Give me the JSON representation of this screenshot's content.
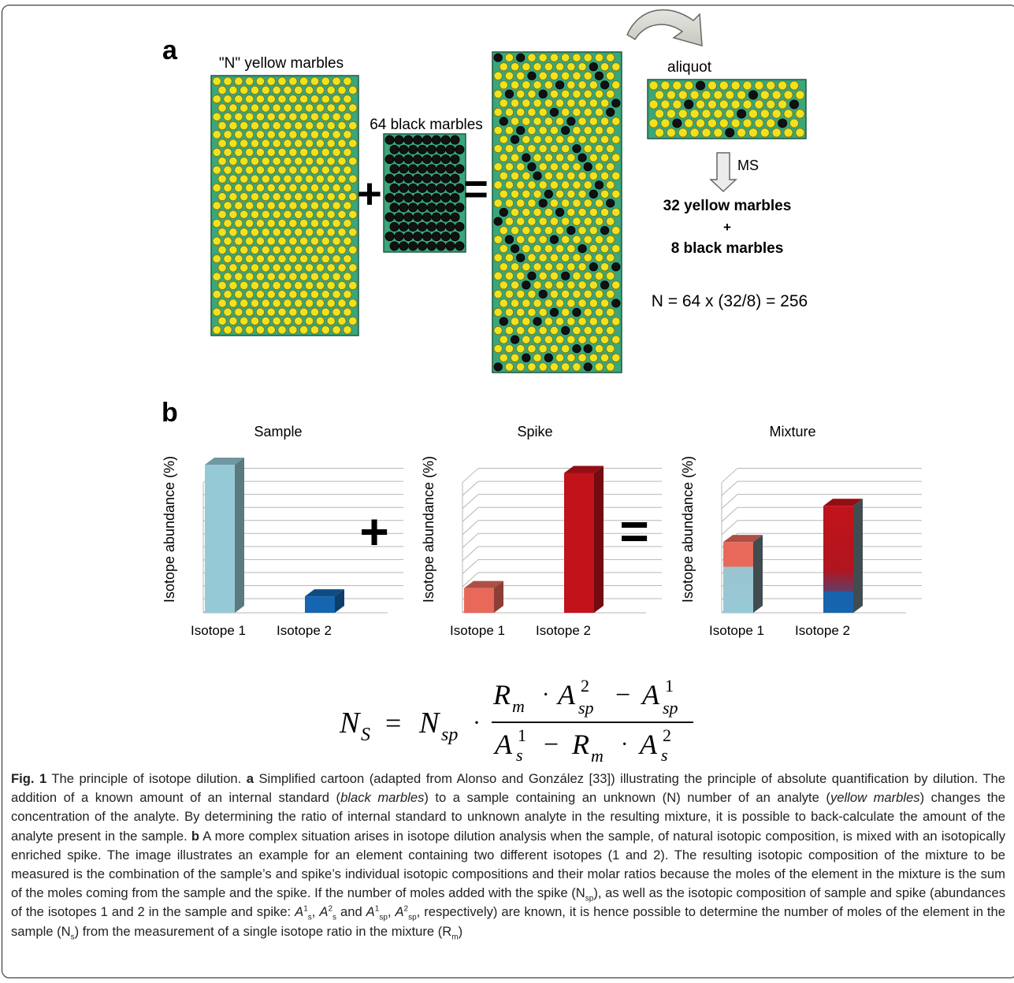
{
  "panel_a": {
    "label": "a",
    "yellow_title": "\"N\" yellow marbles",
    "black_title": "64 black marbles",
    "plus": "+",
    "equals": "=",
    "aliquot": "aliquot",
    "ms": "MS",
    "result_line1": "32 yellow marbles",
    "result_plus": "+",
    "result_line2": "8 black marbles",
    "equation": "N = 64 x (32/8) = 256",
    "colors": {
      "board": "#3aa67a",
      "yellow": "#f2e21e",
      "black": "#111111"
    }
  },
  "panel_b": {
    "label": "b",
    "plus": "+",
    "equals": "=",
    "ylabel": "Isotope abundance (%)"
  },
  "chart_data": [
    {
      "type": "bar",
      "title": "Sample",
      "categories": [
        "Isotope 1",
        "Isotope 2"
      ],
      "values": [
        90,
        10
      ],
      "colors": [
        "#96c9d6",
        "#1565b0"
      ],
      "ylabel": "Isotope abundance (%)",
      "ylim": [
        0,
        100
      ],
      "grid": true
    },
    {
      "type": "bar",
      "title": "Spike",
      "categories": [
        "Isotope 1",
        "Isotope 2"
      ],
      "values": [
        15,
        85
      ],
      "colors": [
        "#e8685a",
        "#c2131b"
      ],
      "ylabel": "Isotope abundance (%)",
      "ylim": [
        0,
        100
      ],
      "grid": true
    },
    {
      "type": "bar",
      "title": "Mixture",
      "categories": [
        "Isotope 1",
        "Isotope 2"
      ],
      "stacked": true,
      "series": [
        {
          "values": [
            28,
            13
          ],
          "colors": [
            "#96c9d6",
            "#1565b0"
          ]
        },
        {
          "values": [
            15,
            52
          ],
          "colors": [
            "#e8685a",
            "#c2131b"
          ]
        }
      ],
      "ylabel": "Isotope abundance (%)",
      "ylim": [
        0,
        100
      ],
      "grid": true
    }
  ],
  "formula": {
    "lhs": "N",
    "lhs_sub": "S",
    "rhs": "N",
    "rhs_sub": "sp",
    "num_R": "R",
    "num_R_sub": "m",
    "num_A_sup": "2",
    "num_A_sub": "sp",
    "num_A2_sup": "1",
    "num_A2_sub": "sp",
    "den_A_sup": "1",
    "den_A_sub": "s",
    "den_R": "R",
    "den_R_sub": "m",
    "den_A2_sup": "2",
    "den_A2_sub": "s"
  },
  "caption": {
    "fig": "Fig. 1",
    "title": "The principle of isotope dilution.",
    "a": "a",
    "t1": "Simplified cartoon (adapted from Alonso and González [33]) illustrating the principle of absolute quantification by dilution. The addition of a known amount of an internal standard (",
    "i1": "black marbles",
    "t2": ") to a sample containing an unknown (N) number of an analyte (",
    "i2": "yellow marbles",
    "t3": ") changes the concentration of the analyte. By determining the ratio of internal standard to unknown analyte in the resulting mixture, it is possible to back-calculate the amount of the analyte present in the sample.",
    "b": "b",
    "t4": "A more complex situation arises in isotope dilution analysis when the sample, of natural isotopic composition, is mixed with an isotopically enriched spike. The image illustrates an example for an element containing two different isotopes (1 and 2). The resulting isotopic composition of the mixture to be measured is the combination of the sample’s and spike’s individual isotopic compositions and their molar ratios because the moles of the element in the mixture is the sum of the moles coming from the sample and the spike. If the number of moles added with the spike (N",
    "t4sub": "sp",
    "t5": "), as well as the isotopic composition of sample and spike (abundances of the isotopes 1 and 2 in the sample and spike: ",
    "t6": " and ",
    "t7": ", respectively) are known, it is hence possible to determine the number of moles of the element in the sample (N",
    "t7sub": "s",
    "t8": ") from the measurement of a single isotope ratio in the mixture (R",
    "t8sub": "m",
    "t9": ")",
    "sym_A": "A",
    "s1": "1",
    "s2": "2",
    "ss": "s",
    "ssp": "sp"
  }
}
